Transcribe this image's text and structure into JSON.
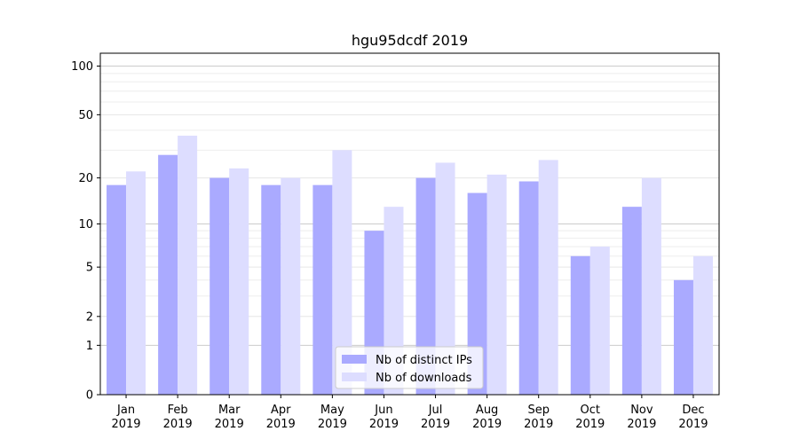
{
  "chart_data": {
    "type": "bar",
    "title": "hgu95dcdf 2019",
    "xlabel": "",
    "ylabel": "",
    "y_scale": "log1p",
    "ylim": [
      0,
      120
    ],
    "y_ticks": [
      0,
      1,
      2,
      5,
      10,
      20,
      50,
      100
    ],
    "y_tick_labels": [
      "0",
      "1",
      "2",
      "5",
      "10",
      "20",
      "50",
      "100"
    ],
    "grid": "horizontal",
    "legend_position": "bottom-center",
    "categories": [
      [
        "Jan",
        "2019"
      ],
      [
        "Feb",
        "2019"
      ],
      [
        "Mar",
        "2019"
      ],
      [
        "Apr",
        "2019"
      ],
      [
        "May",
        "2019"
      ],
      [
        "Jun",
        "2019"
      ],
      [
        "Jul",
        "2019"
      ],
      [
        "Aug",
        "2019"
      ],
      [
        "Sep",
        "2019"
      ],
      [
        "Oct",
        "2019"
      ],
      [
        "Nov",
        "2019"
      ],
      [
        "Dec",
        "2019"
      ]
    ],
    "series": [
      {
        "name": "Nb of distinct IPs",
        "color": "#aaaaff",
        "values": [
          18,
          28,
          20,
          18,
          18,
          9,
          20,
          16,
          19,
          6,
          13,
          4
        ]
      },
      {
        "name": "Nb of downloads",
        "color": "#ddddff",
        "values": [
          22,
          37,
          23,
          20,
          30,
          13,
          25,
          21,
          26,
          7,
          20,
          6
        ]
      }
    ]
  }
}
